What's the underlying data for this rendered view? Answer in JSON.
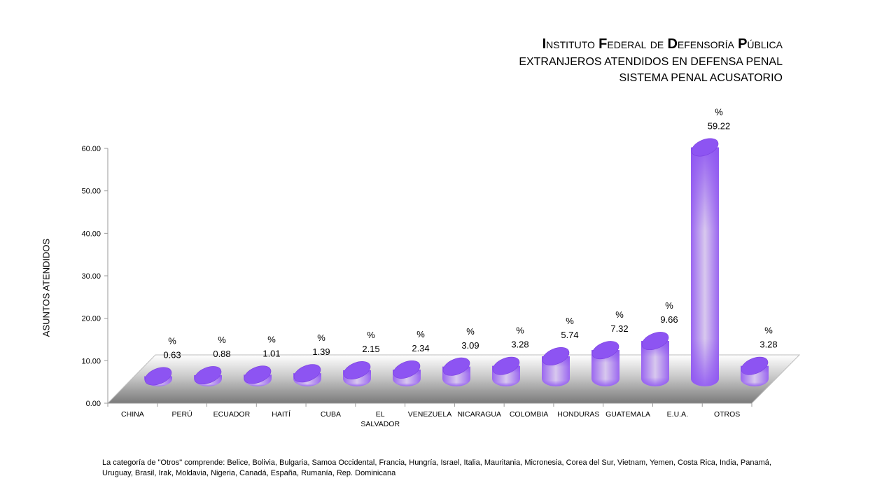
{
  "title": {
    "line1": "Instituto Federal de Defensoría Pública",
    "line2": "EXTRANJEROS ATENDIDOS EN DEFENSA PENAL",
    "line3": "SISTEMA PENAL ACUSATORIO"
  },
  "footnote": "La categoría de \"Otros\" comprende:  Belice, Bolivia, Bulgaria, Samoa Occidental, Francia, Hungría, Israel, Italia, Mauritania, Micronesia, Corea del Sur, Vietnam, Yemen, Costa Rica, India, Panamá, Uruguay, Brasil, Irak, Moldavia, Nigeria, Canadá, España, Rumanía, Rep. Dominicana",
  "colors": {
    "bar_top": "#8d54f2",
    "bar_body": "#9a66f0",
    "bar_light": "#d8c8ee",
    "floor_dark": "#7a7a7a"
  },
  "chart_data": {
    "type": "bar",
    "title": "",
    "xlabel": "",
    "ylabel": "ASUNTOS ATENDIDOS",
    "ylim": [
      0,
      60
    ],
    "yticks": [
      "0.00",
      "10.00",
      "20.00",
      "30.00",
      "40.00",
      "50.00",
      "60.00"
    ],
    "grid": false,
    "style": "3d-cylinder",
    "categories": [
      "CHINA",
      "PERÚ",
      "ECUADOR",
      "HAITÍ",
      "CUBA",
      "EL SALVADOR",
      "VENEZUELA",
      "NICARAGUA",
      "COLOMBIA",
      "HONDURAS",
      "GUATEMALA",
      "E.U.A.",
      "OTROS"
    ],
    "category_lines": [
      [
        "CHINA"
      ],
      [
        "PERÚ"
      ],
      [
        "ECUADOR"
      ],
      [
        "HAITÍ"
      ],
      [
        "CUBA"
      ],
      [
        "EL",
        "SALVADOR"
      ],
      [
        "VENEZUELA"
      ],
      [
        "NICARAGUA"
      ],
      [
        "COLOMBIA"
      ],
      [
        "HONDURAS"
      ],
      [
        "GUATEMALA"
      ],
      [
        "E.U.A."
      ],
      [
        "OTROS"
      ]
    ],
    "values": [
      0.63,
      0.88,
      1.01,
      1.39,
      2.15,
      2.34,
      3.09,
      3.28,
      5.74,
      7.32,
      9.66,
      59.22,
      3.28
    ],
    "labels": [
      "0.63",
      "0.88",
      "1.01",
      "1.39",
      "2.15",
      "2.34",
      "3.09",
      "3.28",
      "5.74",
      "7.32",
      "9.66",
      "59.22",
      "3.28"
    ],
    "label_prefix": "%"
  }
}
